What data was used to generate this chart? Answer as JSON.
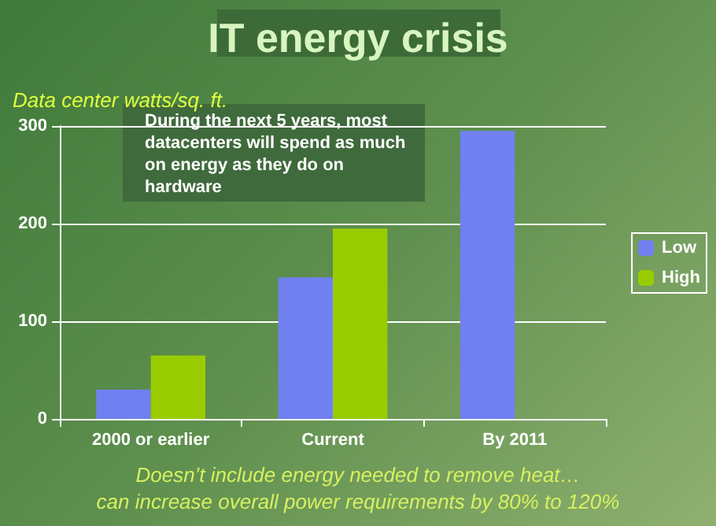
{
  "chart_data": {
    "type": "bar",
    "title": "IT energy crisis",
    "ylabel": "Data center watts/sq. ft.",
    "categories": [
      "2000 or earlier",
      "Current",
      "By 2011"
    ],
    "series": [
      {
        "name": "Low",
        "color": "#7080f0",
        "values": [
          30,
          145,
          295
        ]
      },
      {
        "name": "High",
        "color": "#99cc00",
        "values": [
          65,
          195,
          null
        ]
      }
    ],
    "ylim": [
      0,
      300
    ],
    "yticks": [
      0,
      100,
      200,
      300
    ],
    "grid": "y",
    "legend": "right",
    "annotations": [
      "During the next 5 years, most datacenters will spend as much on energy as they do on hardware",
      "Doesn’t include energy needed to remove heat…",
      "can increase overall power requirements by 80% to 120%"
    ]
  }
}
